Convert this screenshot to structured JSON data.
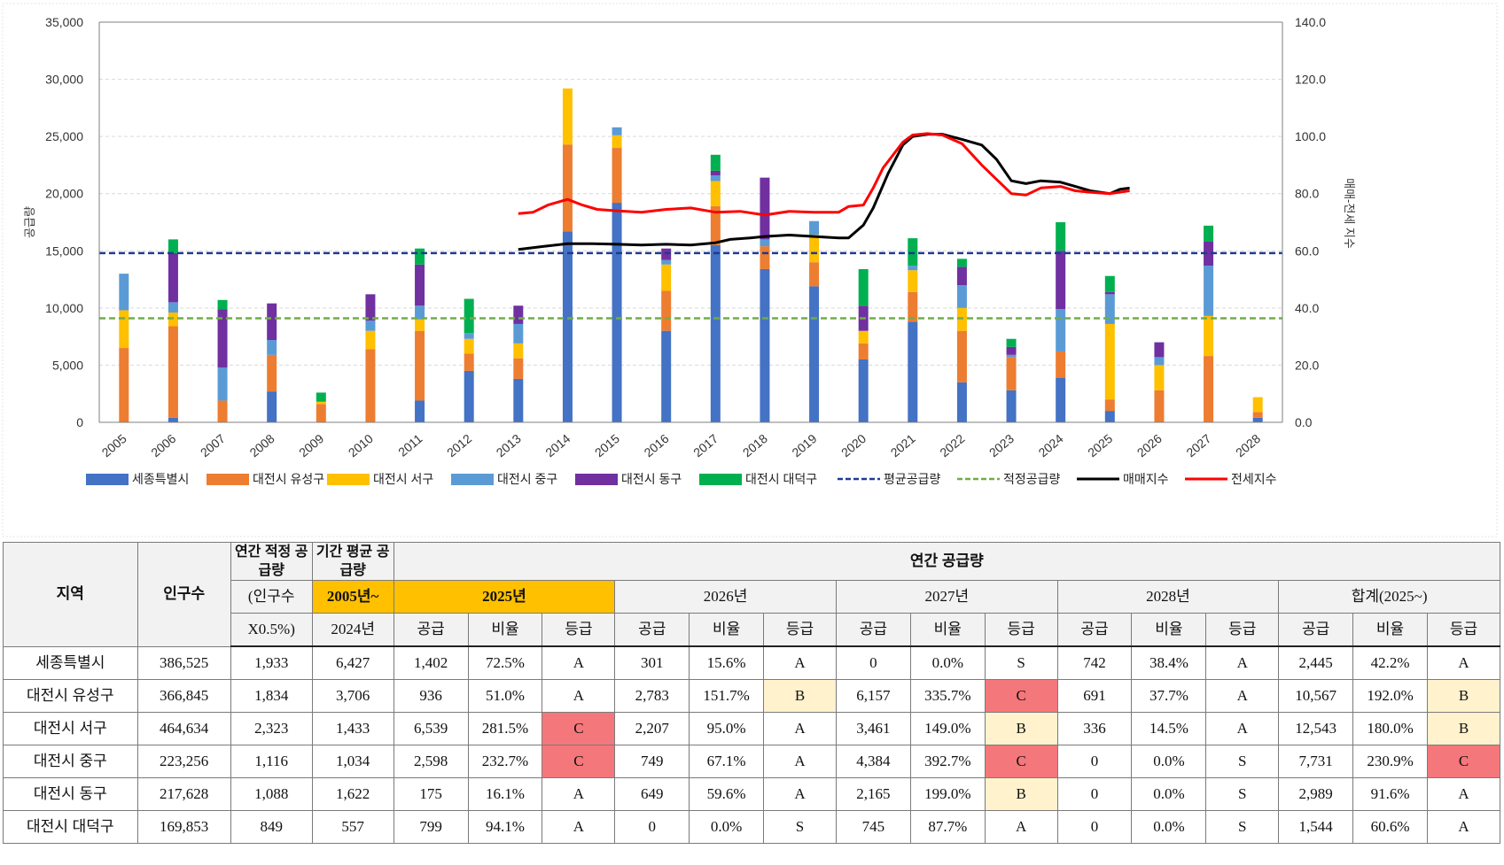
{
  "chart_data": {
    "type": "bar",
    "stacked": true,
    "categories": [
      "2005",
      "2006",
      "2007",
      "2008",
      "2009",
      "2010",
      "2011",
      "2012",
      "2013",
      "2014",
      "2015",
      "2016",
      "2017",
      "2018",
      "2019",
      "2020",
      "2021",
      "2022",
      "2023",
      "2024",
      "2025",
      "2026",
      "2027",
      "2028"
    ],
    "ylabel": "공급량",
    "y2label": "매매-전세 지수",
    "ylim": [
      0,
      35000
    ],
    "y2lim": [
      0,
      140
    ],
    "yticks": [
      "0",
      "5,000",
      "10,000",
      "15,000",
      "20,000",
      "25,000",
      "30,000",
      "35,000"
    ],
    "y2ticks": [
      "0.0",
      "20.0",
      "40.0",
      "60.0",
      "80.0",
      "100.0",
      "120.0",
      "140.0"
    ],
    "grid": true,
    "legend_position": "bottom",
    "series": [
      {
        "name": "세종특별시",
        "color": "#4472c4",
        "values": [
          0,
          400,
          0,
          2700,
          0,
          0,
          1900,
          4500,
          3800,
          16700,
          19200,
          8000,
          15500,
          13400,
          11900,
          5500,
          8800,
          3500,
          2800,
          3900,
          1000,
          0,
          0,
          400
        ]
      },
      {
        "name": "대전시 유성구",
        "color": "#ed7d31",
        "values": [
          6500,
          8000,
          1900,
          3200,
          1600,
          6400,
          6100,
          1500,
          1800,
          7600,
          4800,
          3500,
          3400,
          2000,
          2100,
          1400,
          2600,
          4500,
          2900,
          2300,
          1000,
          2800,
          5800,
          500
        ]
      },
      {
        "name": "대전시 서구",
        "color": "#ffc000",
        "values": [
          3300,
          1200,
          0,
          0,
          200,
          1600,
          1000,
          1300,
          1300,
          4900,
          1100,
          2300,
          2200,
          0,
          2400,
          1100,
          1900,
          2000,
          0,
          0,
          6600,
          2200,
          3500,
          1300
        ]
      },
      {
        "name": "대전시 중구",
        "color": "#5b9bd5",
        "values": [
          3200,
          900,
          2900,
          1300,
          0,
          900,
          1200,
          500,
          1700,
          0,
          700,
          400,
          500,
          600,
          1200,
          0,
          400,
          2000,
          200,
          3700,
          2600,
          700,
          4400,
          0
        ]
      },
      {
        "name": "대전시 동구",
        "color": "#7030a0",
        "values": [
          0,
          4300,
          5100,
          3200,
          0,
          2300,
          3600,
          0,
          1600,
          0,
          0,
          1000,
          400,
          5400,
          0,
          2200,
          0,
          1600,
          700,
          5100,
          200,
          1300,
          2100,
          0
        ]
      },
      {
        "name": "대전시 대덕구",
        "color": "#00b050",
        "values": [
          0,
          1200,
          800,
          0,
          800,
          0,
          1400,
          3000,
          0,
          0,
          0,
          0,
          1400,
          0,
          0,
          3200,
          2400,
          700,
          700,
          2500,
          1400,
          0,
          1400,
          0
        ]
      }
    ],
    "lines": [
      {
        "name": "평균공급량",
        "color": "#1f3a93",
        "style": "dashed",
        "axis": "left",
        "value": 14800
      },
      {
        "name": "적정공급량",
        "color": "#70ad47",
        "style": "dashed",
        "axis": "left",
        "value": 9100
      },
      {
        "name": "매매지수",
        "color": "#000000",
        "style": "solid",
        "axis": "right",
        "x": [
          2013,
          2013.5,
          2014,
          2014.5,
          2015,
          2015.5,
          2016,
          2016.5,
          2017,
          2017.3,
          2017.7,
          2018,
          2018.5,
          2019,
          2019.5,
          2019.7,
          2020,
          2020.2,
          2020.5,
          2020.8,
          2021,
          2021.3,
          2021.6,
          2022,
          2022.4,
          2022.7,
          2023,
          2023.3,
          2023.6,
          2024,
          2024.3,
          2024.6,
          2025,
          2025.2,
          2025.4
        ],
        "y": [
          60.5,
          61.5,
          62.5,
          62.5,
          62.3,
          62.0,
          62.3,
          62.0,
          62.8,
          64.0,
          64.5,
          65.0,
          65.5,
          65.0,
          64.5,
          64.5,
          69.0,
          75.0,
          87.0,
          97.0,
          100.0,
          100.8,
          100.8,
          99.0,
          97.0,
          92.0,
          84.5,
          83.5,
          84.5,
          84.0,
          82.5,
          81.0,
          80.0,
          81.5,
          82.0
        ]
      },
      {
        "name": "전세지수",
        "color": "#ff0000",
        "style": "solid",
        "axis": "right",
        "x": [
          2013,
          2013.3,
          2013.6,
          2014,
          2014.3,
          2014.6,
          2015,
          2015.5,
          2016,
          2016.5,
          2017,
          2017.5,
          2018,
          2018.5,
          2019,
          2019.5,
          2019.7,
          2020,
          2020.2,
          2020.4,
          2020.8,
          2021,
          2021.3,
          2021.6,
          2022,
          2022.4,
          2022.7,
          2023,
          2023.3,
          2023.6,
          2024,
          2024.3,
          2024.6,
          2025,
          2025.2,
          2025.4
        ],
        "y": [
          73.0,
          73.5,
          76.0,
          78.0,
          76.0,
          74.5,
          74.0,
          73.5,
          74.5,
          75.0,
          73.5,
          73.8,
          72.5,
          73.8,
          73.5,
          73.5,
          75.5,
          76.0,
          82.0,
          89.0,
          98.0,
          100.5,
          101.0,
          100.5,
          97.5,
          90.0,
          85.0,
          80.0,
          79.5,
          82.0,
          82.5,
          81.0,
          80.5,
          80.0,
          80.5,
          81.0
        ]
      }
    ]
  },
  "table": {
    "h_region": "지역",
    "h_population": "인구수",
    "h_annual_proper": "연간 적정 공급량",
    "h_period_avg": "기간 평균 공급량",
    "h_annual_supply": "연간 공급량",
    "h_population_note": "(인구수",
    "h_population_note2": "X0.5%)",
    "h_avg_from": "2005년~",
    "h_avg_to": "2024년",
    "years": [
      "2025년",
      "2026년",
      "2027년",
      "2028년",
      "합계(2025~)"
    ],
    "col_supply": "공급",
    "col_ratio": "비율",
    "col_grade": "등급",
    "rows": [
      {
        "region": "세종특별시",
        "population": "386,525",
        "proper": "1,933",
        "avg": "6,427",
        "cells": [
          [
            "1,402",
            "72.5%",
            "A"
          ],
          [
            "301",
            "15.6%",
            "A"
          ],
          [
            "0",
            "0.0%",
            "S"
          ],
          [
            "742",
            "38.4%",
            "A"
          ],
          [
            "2,445",
            "42.2%",
            "A"
          ]
        ]
      },
      {
        "region": "대전시 유성구",
        "population": "366,845",
        "proper": "1,834",
        "avg": "3,706",
        "cells": [
          [
            "936",
            "51.0%",
            "A"
          ],
          [
            "2,783",
            "151.7%",
            "B"
          ],
          [
            "6,157",
            "335.7%",
            "C"
          ],
          [
            "691",
            "37.7%",
            "A"
          ],
          [
            "10,567",
            "192.0%",
            "B"
          ]
        ]
      },
      {
        "region": "대전시 서구",
        "population": "464,634",
        "proper": "2,323",
        "avg": "1,433",
        "cells": [
          [
            "6,539",
            "281.5%",
            "C"
          ],
          [
            "2,207",
            "95.0%",
            "A"
          ],
          [
            "3,461",
            "149.0%",
            "B"
          ],
          [
            "336",
            "14.5%",
            "A"
          ],
          [
            "12,543",
            "180.0%",
            "B"
          ]
        ]
      },
      {
        "region": "대전시 중구",
        "population": "223,256",
        "proper": "1,116",
        "avg": "1,034",
        "cells": [
          [
            "2,598",
            "232.7%",
            "C"
          ],
          [
            "749",
            "67.1%",
            "A"
          ],
          [
            "4,384",
            "392.7%",
            "C"
          ],
          [
            "0",
            "0.0%",
            "S"
          ],
          [
            "7,731",
            "230.9%",
            "C"
          ]
        ]
      },
      {
        "region": "대전시 동구",
        "population": "217,628",
        "proper": "1,088",
        "avg": "1,622",
        "cells": [
          [
            "175",
            "16.1%",
            "A"
          ],
          [
            "649",
            "59.6%",
            "A"
          ],
          [
            "2,165",
            "199.0%",
            "B"
          ],
          [
            "0",
            "0.0%",
            "S"
          ],
          [
            "2,989",
            "91.6%",
            "A"
          ]
        ]
      },
      {
        "region": "대전시 대덕구",
        "population": "169,853",
        "proper": "849",
        "avg": "557",
        "cells": [
          [
            "799",
            "94.1%",
            "A"
          ],
          [
            "0",
            "0.0%",
            "S"
          ],
          [
            "745",
            "87.7%",
            "A"
          ],
          [
            "0",
            "0.0%",
            "S"
          ],
          [
            "1,544",
            "60.6%",
            "A"
          ]
        ]
      }
    ]
  }
}
